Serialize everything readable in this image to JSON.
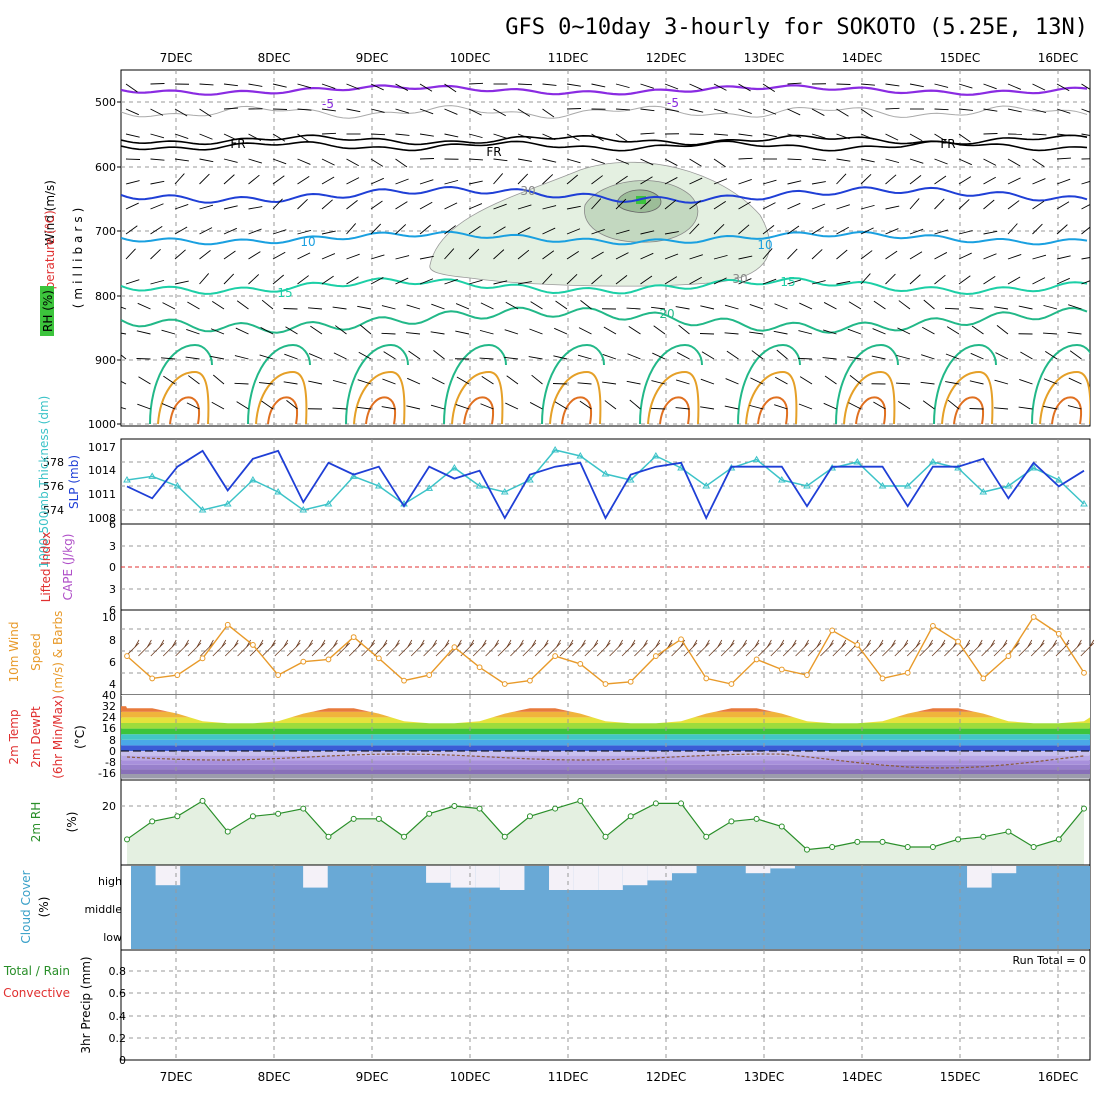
{
  "title": "GFS 0~10day 3-hourly for SOKOTO (5.25E, 13N)",
  "dates": [
    "7DEC",
    "8DEC",
    "9DEC",
    "10DEC",
    "11DEC",
    "12DEC",
    "13DEC",
    "14DEC",
    "15DEC",
    "16DEC"
  ],
  "colors": {
    "slp": "#1f3fd6",
    "thickness": "#3cc3c8",
    "wind10m": "#e89a2a",
    "rh": "#2a8f2a",
    "rh_fill": "#e4f0e1",
    "cloud_high": "#f4f1f8",
    "cloud_low": "#69a9d6",
    "temp5": "#8a2be2",
    "tempFR": "#000000",
    "temp10": "#1aa0e0",
    "temp15": "#1ccfa6",
    "temp20": "#22b888",
    "temp_warm": "#e5a028",
    "precip_total": "#2a8f2a",
    "precip_conv": "#e03030"
  },
  "panels": {
    "upper": {
      "labels": {
        "wind": "Wind (m/s)",
        "temperature": "Temperature (°C)",
        "rh": "RH (%)",
        "mb": "(millibars)"
      },
      "yticks": [
        "500",
        "600",
        "700",
        "800",
        "900",
        "1000"
      ],
      "contour_labels": [
        "-5",
        "FR",
        "10",
        "15",
        "20",
        "30"
      ]
    },
    "slp": {
      "label_thick": "1000-500mb Thickness (dm)",
      "label_slp": "SLP (mb)",
      "thick_ticks": [
        "578",
        "576",
        "574"
      ],
      "slp_ticks": [
        "1017",
        "1014",
        "1011",
        "1008"
      ]
    },
    "cape": {
      "label_li": "Lifted Index",
      "label_cape": "CAPE (J/kg)",
      "ticks": [
        "6",
        "3",
        "0",
        "3",
        "6"
      ]
    },
    "wind10": {
      "label_a": "10m Wind",
      "label_b": "Speed",
      "label_c": "(m/s) & Barbs",
      "ticks": [
        "10",
        "8",
        "6",
        "4"
      ]
    },
    "temp": {
      "label_a": "2m Temp",
      "label_b": "2m DewPt",
      "label_c": "(6hr Min/Max)",
      "label_unit": "(°C)",
      "ticks": [
        "40",
        "32",
        "24",
        "16",
        "8",
        "0",
        "-8",
        "-16"
      ]
    },
    "rh2m": {
      "label": "2m RH",
      "unit": "(%)",
      "ticks": [
        "20"
      ]
    },
    "cloud": {
      "label": "Cloud Cover",
      "unit": "(%)",
      "levels": [
        "high",
        "middle",
        "low"
      ]
    },
    "precip": {
      "label_a": "3hr Precip (mm)",
      "label_total": "Total / Rain",
      "label_conv": "Convective",
      "ticks": [
        "0.8",
        "0.6",
        "0.4",
        "0.2",
        "0"
      ],
      "run_total": "Run Total = 0"
    }
  },
  "chart_data": [
    {
      "type": "line",
      "title": "1000-500mb Thickness & SLP",
      "x": [
        "6DEC18",
        "7DEC00",
        "7DEC06",
        "7DEC12",
        "7DEC18",
        "8DEC00",
        "8DEC06",
        "8DEC12",
        "8DEC18",
        "9DEC00",
        "9DEC06",
        "9DEC12",
        "9DEC18",
        "10DEC00",
        "10DEC06",
        "10DEC12",
        "10DEC18",
        "11DEC00",
        "11DEC06",
        "11DEC12",
        "11DEC18",
        "12DEC00",
        "12DEC06",
        "12DEC12",
        "12DEC18",
        "13DEC00",
        "13DEC06",
        "13DEC12",
        "13DEC18",
        "14DEC00",
        "14DEC06",
        "14DEC12",
        "14DEC18",
        "15DEC00",
        "15DEC06",
        "15DEC12",
        "15DEC18",
        "16DEC00",
        "16DEC06"
      ],
      "series": [
        {
          "name": "SLP (mb)",
          "values": [
            1012,
            1010.5,
            1014.5,
            1016.5,
            1011.5,
            1015.5,
            1016.5,
            1010,
            1015,
            1013.5,
            1014.5,
            1009.5,
            1014.5,
            1013,
            1014,
            1008,
            1013.5,
            1014.5,
            1015,
            1008,
            1013.5,
            1014.5,
            1015,
            1008,
            1014.5,
            1014.5,
            1014.5,
            1009.5,
            1014.5,
            1014.5,
            1014.5,
            1009.5,
            1014.5,
            1014.5,
            1015.5,
            1010.5,
            1015,
            1012,
            1014
          ]
        },
        {
          "name": "1000-500mb Thickness (dm)",
          "values": [
            576.5,
            576.8,
            576,
            574,
            574.5,
            576.5,
            575.5,
            574,
            574.5,
            576.8,
            576,
            574.5,
            575.8,
            577.5,
            576,
            575.5,
            576.5,
            579,
            578.5,
            577,
            576.5,
            578.5,
            577.5,
            576,
            577.5,
            578.2,
            576.5,
            576,
            577.5,
            578,
            576,
            576,
            578,
            577.5,
            575.5,
            576,
            577.5,
            576.5,
            574.5
          ]
        }
      ]
    },
    {
      "type": "line",
      "title": "10m Wind Speed",
      "x": [
        "6DEC18",
        "7DEC00",
        "7DEC06",
        "7DEC12",
        "7DEC18",
        "8DEC00",
        "8DEC06",
        "8DEC12",
        "8DEC18",
        "9DEC00",
        "9DEC06",
        "9DEC12",
        "9DEC18",
        "10DEC00",
        "10DEC06",
        "10DEC12",
        "10DEC18",
        "11DEC00",
        "11DEC06",
        "11DEC12",
        "11DEC18",
        "12DEC00",
        "12DEC06",
        "12DEC12",
        "12DEC18",
        "13DEC00",
        "13DEC06",
        "13DEC12",
        "13DEC18",
        "14DEC00",
        "14DEC06",
        "14DEC12",
        "14DEC18",
        "15DEC00",
        "15DEC06",
        "15DEC12",
        "15DEC18",
        "16DEC00",
        "16DEC06"
      ],
      "series": [
        {
          "name": "10m Wind Speed (m/s)",
          "values": [
            6.5,
            4.5,
            4.8,
            6.3,
            9.3,
            7.5,
            4.8,
            6,
            6.2,
            8.2,
            6.3,
            4.3,
            4.8,
            7.3,
            5.5,
            4,
            4.3,
            6.5,
            5.8,
            4,
            4.2,
            6.5,
            8,
            4.5,
            4,
            6.2,
            5.3,
            4.8,
            8.8,
            7.5,
            4.5,
            5,
            9.2,
            7.8,
            4.5,
            6.5,
            10,
            8.5,
            5
          ]
        }
      ]
    },
    {
      "type": "line",
      "title": "2m RH",
      "x": [
        "6DEC18",
        "7DEC00",
        "7DEC06",
        "7DEC12",
        "7DEC18",
        "8DEC00",
        "8DEC06",
        "8DEC12",
        "8DEC18",
        "9DEC00",
        "9DEC06",
        "9DEC12",
        "9DEC18",
        "10DEC00",
        "10DEC06",
        "10DEC12",
        "10DEC18",
        "11DEC00",
        "11DEC06",
        "11DEC12",
        "11DEC18",
        "12DEC00",
        "12DEC06",
        "12DEC12",
        "12DEC18",
        "13DEC00",
        "13DEC06",
        "13DEC12",
        "13DEC18",
        "14DEC00",
        "14DEC06",
        "14DEC12",
        "14DEC18",
        "15DEC00",
        "15DEC06",
        "15DEC12",
        "15DEC18",
        "16DEC00",
        "16DEC06"
      ],
      "series": [
        {
          "name": "2m RH (%)",
          "values": [
            10,
            17,
            19,
            25,
            13,
            19,
            20,
            22,
            11,
            18,
            18,
            11,
            20,
            23,
            22,
            11,
            19,
            22,
            25,
            11,
            19,
            24,
            24,
            11,
            17,
            18,
            15,
            6,
            7,
            9,
            9,
            7,
            7,
            10,
            11,
            13,
            7,
            10,
            22
          ]
        }
      ]
    },
    {
      "type": "bar",
      "title": "Cloud Cover (high)",
      "categories": [
        "6DEC18",
        "7DEC00",
        "7DEC06",
        "7DEC12",
        "7DEC18",
        "8DEC00",
        "8DEC06",
        "8DEC12",
        "8DEC18",
        "9DEC00",
        "9DEC06",
        "9DEC12",
        "9DEC18",
        "10DEC00",
        "10DEC06",
        "10DEC12",
        "10DEC18",
        "11DEC00",
        "11DEC06",
        "11DEC12",
        "11DEC18",
        "12DEC00",
        "12DEC06",
        "12DEC12",
        "12DEC18",
        "13DEC00",
        "13DEC06",
        "13DEC12",
        "13DEC18",
        "14DEC00",
        "14DEC06",
        "14DEC12",
        "14DEC18",
        "15DEC00",
        "15DEC06",
        "15DEC12",
        "15DEC18",
        "16DEC00",
        "16DEC06"
      ],
      "series": [
        {
          "name": "high",
          "values": [
            0,
            80,
            0,
            0,
            0,
            0,
            0,
            90,
            0,
            0,
            0,
            0,
            70,
            90,
            90,
            100,
            0,
            100,
            100,
            100,
            80,
            60,
            30,
            0,
            0,
            30,
            10,
            0,
            0,
            0,
            0,
            0,
            0,
            0,
            90,
            30,
            0,
            0,
            0
          ]
        }
      ]
    },
    {
      "type": "bar",
      "title": "3hr Precip",
      "categories": [
        "7DEC",
        "8DEC",
        "9DEC",
        "10DEC",
        "11DEC",
        "12DEC",
        "13DEC",
        "14DEC",
        "15DEC",
        "16DEC"
      ],
      "series": [
        {
          "name": "Total / Rain",
          "values": [
            0,
            0,
            0,
            0,
            0,
            0,
            0,
            0,
            0,
            0
          ]
        }
      ],
      "ylim": [
        0,
        0.9
      ]
    }
  ]
}
